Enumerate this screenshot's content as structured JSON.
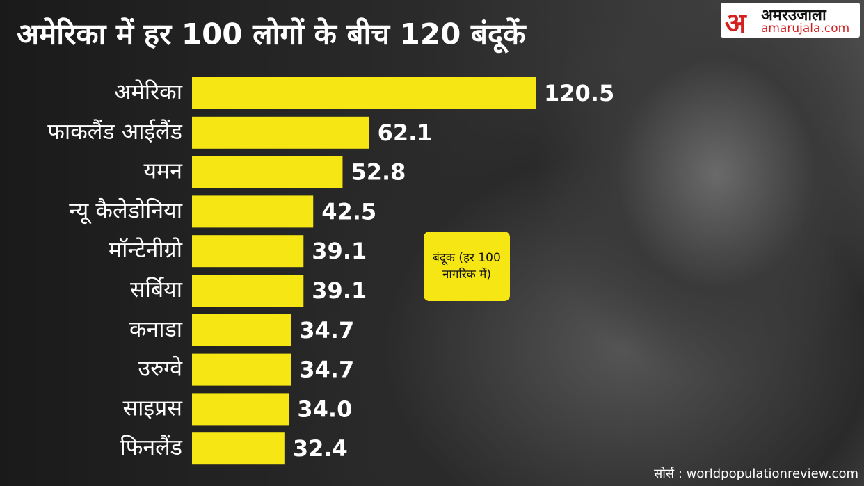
{
  "chart_data": {
    "type": "hbar",
    "title": "अमेरिका में हर 100 लोगों के बीच 120 बंदूकें",
    "categories": [
      "अमेरिका",
      "फाकलैंड आईलैंड",
      "यमन",
      "न्यू कैलेडोनिया",
      "मॉन्टेनीग्रो",
      "सर्बिया",
      "कनाडा",
      "उरुग्वे",
      "साइप्रस",
      "फिनलैंड"
    ],
    "series": [
      {
        "name": "बंदूक (हर 100 नागरिक में)",
        "color": "#f5e614",
        "values": [
          120.5,
          62.1,
          52.8,
          42.5,
          39.1,
          39.1,
          34.7,
          34.7,
          34.0,
          32.4
        ],
        "value_labels": [
          "120.5",
          "62.1",
          "52.8",
          "42.5",
          "39.1",
          "39.1",
          "34.7",
          "34.7",
          "34.0",
          "32.4"
        ]
      }
    ],
    "logo": {
      "mark": "अ",
      "name": "अमरउजाला",
      "url": "amarujala.com"
    },
    "source": "सोर्स : worldpopulationreview.com"
  }
}
